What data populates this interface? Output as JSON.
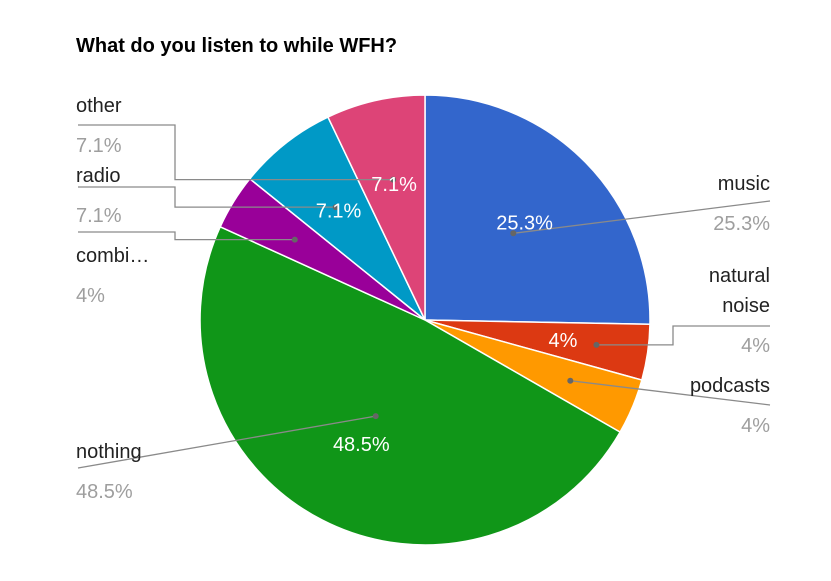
{
  "chart_data": {
    "type": "pie",
    "title": "What do you listen to while WFH?",
    "slices": [
      {
        "label": "music",
        "label_lines": [
          "music"
        ],
        "value": 25.3,
        "display": "25.3%",
        "color": "#3366cc"
      },
      {
        "label": "natural noise",
        "label_lines": [
          "natural",
          "noise"
        ],
        "value": 4,
        "display": "4%",
        "color": "#dc3912"
      },
      {
        "label": "podcasts",
        "label_lines": [
          "podcasts"
        ],
        "value": 4,
        "display": "4%",
        "color": "#ff9900"
      },
      {
        "label": "nothing",
        "label_lines": [
          "nothing"
        ],
        "value": 48.5,
        "display": "48.5%",
        "color": "#109618"
      },
      {
        "label": "combi…",
        "label_lines": [
          "combi…"
        ],
        "value": 4,
        "display": "4%",
        "color": "#990099"
      },
      {
        "label": "radio",
        "label_lines": [
          "radio"
        ],
        "value": 7.1,
        "display": "7.1%",
        "color": "#0099c6"
      },
      {
        "label": "other",
        "label_lines": [
          "other"
        ],
        "value": 7.1,
        "display": "7.1%",
        "color": "#dd4477"
      }
    ],
    "inside_labels": [
      "25.3%",
      "4%",
      "",
      "48.5%",
      "",
      "7.1%",
      "7.1%"
    ]
  }
}
